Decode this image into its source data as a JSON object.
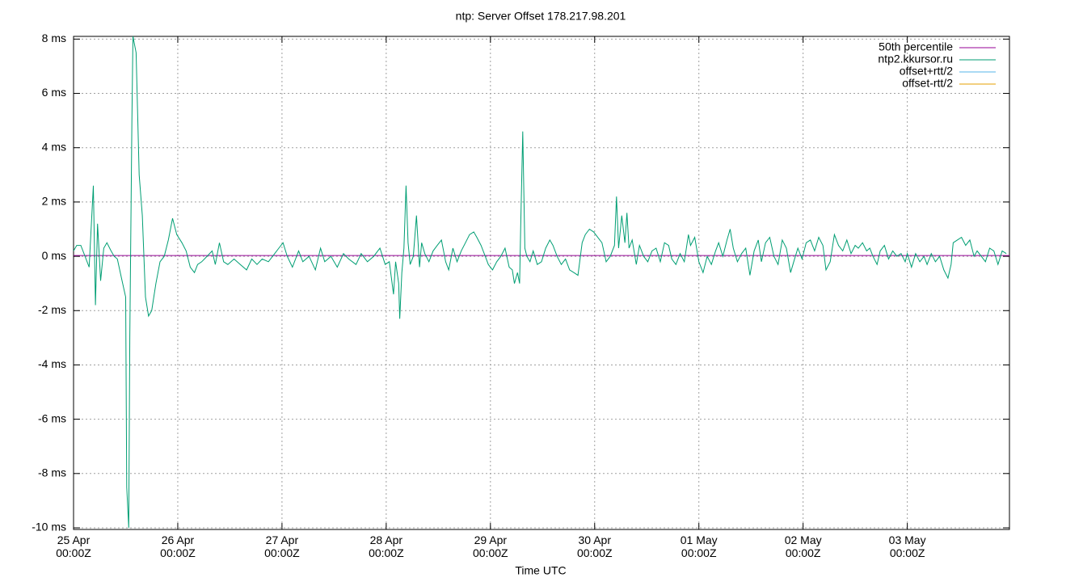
{
  "chart_data": {
    "type": "line",
    "title": "ntp: Server Offset 178.217.98.201",
    "xlabel": "Time UTC",
    "xlim": [
      0,
      8.98
    ],
    "xticks": [
      {
        "value": 0,
        "label": "25 Apr\n00:00Z"
      },
      {
        "value": 1,
        "label": "26 Apr\n00:00Z"
      },
      {
        "value": 2,
        "label": "27 Apr\n00:00Z"
      },
      {
        "value": 3,
        "label": "28 Apr\n00:00Z"
      },
      {
        "value": 4,
        "label": "29 Apr\n00:00Z"
      },
      {
        "value": 5,
        "label": "30 Apr\n00:00Z"
      },
      {
        "value": 6,
        "label": "01 May\n00:00Z"
      },
      {
        "value": 7,
        "label": "02 May\n00:00Z"
      },
      {
        "value": 8,
        "label": "03 May\n00:00Z"
      }
    ],
    "ylim": [
      -10.06,
      8.1
    ],
    "yticks": [
      {
        "value": -10,
        "label": "-10 ms"
      },
      {
        "value": -8,
        "label": "-8 ms"
      },
      {
        "value": -6,
        "label": "-6 ms"
      },
      {
        "value": -4,
        "label": "-4 ms"
      },
      {
        "value": -2,
        "label": "-2 ms"
      },
      {
        "value": 0,
        "label": "0 ms"
      },
      {
        "value": 2,
        "label": "2 ms"
      },
      {
        "value": 4,
        "label": "4 ms"
      },
      {
        "value": 6,
        "label": "6 ms"
      },
      {
        "value": 8,
        "label": "8 ms"
      }
    ],
    "grid": true,
    "legend": "top-right",
    "series": [
      {
        "name": "50th percentile",
        "color": "#940094",
        "x": [
          0,
          8.98
        ],
        "values": [
          0.03,
          0.03
        ]
      },
      {
        "name": "ntp2.kkursor.ru",
        "color": "#009e73",
        "x": [
          0,
          0.03,
          0.07,
          0.11,
          0.15,
          0.19,
          0.21,
          0.23,
          0.26,
          0.29,
          0.32,
          0.36,
          0.39,
          0.42,
          0.46,
          0.5,
          0.51,
          0.53,
          0.54,
          0.56,
          0.57,
          0.6,
          0.63,
          0.66,
          0.69,
          0.72,
          0.75,
          0.79,
          0.83,
          0.87,
          0.91,
          0.95,
          0.99,
          1.04,
          1.08,
          1.12,
          1.16,
          1.19,
          1.23,
          1.28,
          1.33,
          1.36,
          1.4,
          1.44,
          1.48,
          1.54,
          1.6,
          1.66,
          1.71,
          1.76,
          1.81,
          1.87,
          1.93,
          1.97,
          2.01,
          2.05,
          2.1,
          2.16,
          2.2,
          2.26,
          2.32,
          2.37,
          2.41,
          2.47,
          2.53,
          2.59,
          2.64,
          2.71,
          2.76,
          2.82,
          2.88,
          2.94,
          2.99,
          3.03,
          3.07,
          3.09,
          3.12,
          3.13,
          3.15,
          3.17,
          3.19,
          3.21,
          3.23,
          3.26,
          3.29,
          3.32,
          3.34,
          3.37,
          3.41,
          3.45,
          3.49,
          3.53,
          3.57,
          3.6,
          3.64,
          3.68,
          3.72,
          3.76,
          3.8,
          3.84,
          3.87,
          3.91,
          3.95,
          3.98,
          4.02,
          4.06,
          4.1,
          4.14,
          4.18,
          4.21,
          4.23,
          4.26,
          4.28,
          4.29,
          4.31,
          4.33,
          4.35,
          4.38,
          4.41,
          4.45,
          4.49,
          4.53,
          4.57,
          4.6,
          4.64,
          4.68,
          4.72,
          4.76,
          4.8,
          4.84,
          4.88,
          4.91,
          4.95,
          4.99,
          5.03,
          5.07,
          5.11,
          5.15,
          5.19,
          5.21,
          5.23,
          5.26,
          5.29,
          5.31,
          5.33,
          5.36,
          5.4,
          5.43,
          5.47,
          5.51,
          5.55,
          5.59,
          5.63,
          5.67,
          5.71,
          5.74,
          5.78,
          5.82,
          5.86,
          5.9,
          5.92,
          5.96,
          6,
          6.04,
          6.08,
          6.12,
          6.16,
          6.19,
          6.23,
          6.27,
          6.3,
          6.33,
          6.37,
          6.41,
          6.45,
          6.49,
          6.53,
          6.57,
          6.6,
          6.64,
          6.68,
          6.72,
          6.76,
          6.8,
          6.84,
          6.88,
          6.91,
          6.95,
          6.99,
          7.03,
          7.07,
          7.11,
          7.15,
          7.19,
          7.22,
          7.26,
          7.3,
          7.34,
          7.38,
          7.42,
          7.46,
          7.5,
          7.53,
          7.57,
          7.61,
          7.64,
          7.67,
          7.71,
          7.74,
          7.78,
          7.82,
          7.86,
          7.9,
          7.94,
          7.98,
          8,
          8.04,
          8.08,
          8.12,
          8.16,
          8.19,
          8.23,
          8.27,
          8.31,
          8.35,
          8.39,
          8.42,
          8.44,
          8.48,
          8.52,
          8.56,
          8.6,
          8.64,
          8.67,
          8.71,
          8.75,
          8.79,
          8.83,
          8.87,
          8.91,
          8.95
        ],
        "values": [
          0.2,
          0.4,
          0.4,
          0,
          -0.4,
          2.6,
          -1.8,
          1.2,
          -0.9,
          0.3,
          0.5,
          0.2,
          0,
          -0.1,
          -0.8,
          -1.5,
          -8.5,
          -10,
          -3,
          5,
          8.1,
          7.5,
          3,
          1.5,
          -1.5,
          -2.2,
          -2,
          -1,
          -0.2,
          0,
          0.6,
          1.4,
          0.8,
          0.5,
          0.2,
          -0.4,
          -0.6,
          -0.3,
          -0.2,
          0,
          0.2,
          -0.3,
          0.5,
          -0.2,
          -0.3,
          -0.1,
          -0.3,
          -0.5,
          -0.1,
          -0.3,
          -0.1,
          -0.2,
          0.1,
          0.3,
          0.5,
          0,
          -0.4,
          0.2,
          -0.2,
          0,
          -0.5,
          0.3,
          -0.2,
          0,
          -0.4,
          0.1,
          -0.1,
          -0.3,
          0.1,
          -0.2,
          0,
          0.3,
          -0.3,
          -0.2,
          -1.4,
          -0.2,
          -1,
          -2.3,
          -0.6,
          0.3,
          2.6,
          0.5,
          -0.3,
          0,
          1.5,
          -0.4,
          0.5,
          0.1,
          -0.2,
          0.2,
          0.4,
          0.6,
          -0.2,
          -0.5,
          0.3,
          -0.2,
          0.2,
          0.5,
          0.8,
          0.9,
          0.7,
          0.4,
          0,
          -0.3,
          -0.5,
          -0.2,
          0,
          0.3,
          -0.4,
          -0.5,
          -1,
          -0.6,
          -1,
          1,
          4.6,
          0.3,
          0,
          -0.2,
          0.2,
          -0.3,
          -0.2,
          0.3,
          0.6,
          0.4,
          0,
          -0.3,
          -0.1,
          -0.5,
          -0.6,
          -0.7,
          0.5,
          0.8,
          1,
          0.9,
          0.7,
          0.5,
          -0.2,
          0,
          0.4,
          2.2,
          0.3,
          1.5,
          0.5,
          1.6,
          0.3,
          0.6,
          -0.3,
          0.4,
          0,
          -0.2,
          0.2,
          0.3,
          -0.2,
          0.5,
          0.4,
          -0.1,
          -0.3,
          0.1,
          -0.2,
          0.8,
          0.4,
          0.7,
          -0.2,
          -0.6,
          0,
          -0.3,
          0.2,
          0.5,
          0,
          0.6,
          1,
          0.3,
          -0.2,
          0.1,
          0.3,
          -0.7,
          0.2,
          0.6,
          -0.2,
          0.5,
          0.7,
          0,
          -0.3,
          0.6,
          0.3,
          -0.6,
          -0.2,
          0.3,
          -0.1,
          0.5,
          0.6,
          0.2,
          0.7,
          0.4,
          -0.5,
          -0.2,
          0.8,
          0.4,
          0.2,
          0.6,
          0.1,
          0.4,
          0.3,
          0.5,
          0.2,
          0.3,
          0,
          -0.3,
          0.2,
          0.4,
          -0.1,
          0.2,
          0,
          0.1,
          -0.2,
          0.1,
          -0.4,
          0.1,
          -0.2,
          0,
          -0.3,
          0.1,
          -0.2,
          0,
          -0.5,
          -0.8,
          -0.3,
          0.5,
          0.6,
          0.7,
          0.4,
          0.6,
          0,
          0.2,
          0,
          -0.2,
          0.3,
          0.2,
          -0.3,
          0.2,
          0.1
        ]
      },
      {
        "name": "offset+rtt/2",
        "color": "#56b4e9",
        "x": [],
        "values": []
      },
      {
        "name": "offset-rtt/2",
        "color": "#e69f00",
        "x": [],
        "values": []
      }
    ]
  }
}
